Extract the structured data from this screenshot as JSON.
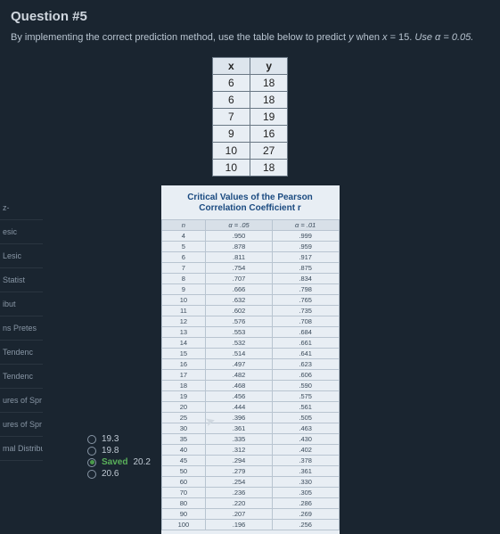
{
  "question": {
    "title": "Question #5",
    "text_before": "By implementing the correct prediction method, use the table below to predict ",
    "var_y": "y",
    "text_mid": " when ",
    "var_x": "x",
    "eq": " = 15.",
    "use": "   Use α = 0.05."
  },
  "xy": {
    "xh": "x",
    "yh": "y",
    "rows": [
      {
        "x": "6",
        "y": "18"
      },
      {
        "x": "6",
        "y": "18"
      },
      {
        "x": "7",
        "y": "19"
      },
      {
        "x": "9",
        "y": "16"
      },
      {
        "x": "10",
        "y": "27"
      },
      {
        "x": "10",
        "y": "18"
      }
    ]
  },
  "crit": {
    "title1": "Critical Values of the Pearson",
    "title2": "Correlation Coefficient r",
    "h_n": "n",
    "h_a05": "α = .05",
    "h_a01": "α = .01",
    "rows": [
      {
        "n": "4",
        "a": ".950",
        "b": ".999"
      },
      {
        "n": "5",
        "a": ".878",
        "b": ".959"
      },
      {
        "n": "6",
        "a": ".811",
        "b": ".917"
      },
      {
        "n": "7",
        "a": ".754",
        "b": ".875"
      },
      {
        "n": "8",
        "a": ".707",
        "b": ".834"
      },
      {
        "n": "9",
        "a": ".666",
        "b": ".798"
      },
      {
        "n": "10",
        "a": ".632",
        "b": ".765"
      },
      {
        "n": "11",
        "a": ".602",
        "b": ".735"
      },
      {
        "n": "12",
        "a": ".576",
        "b": ".708"
      },
      {
        "n": "13",
        "a": ".553",
        "b": ".684"
      },
      {
        "n": "14",
        "a": ".532",
        "b": ".661"
      },
      {
        "n": "15",
        "a": ".514",
        "b": ".641"
      },
      {
        "n": "16",
        "a": ".497",
        "b": ".623"
      },
      {
        "n": "17",
        "a": ".482",
        "b": ".606"
      },
      {
        "n": "18",
        "a": ".468",
        "b": ".590"
      },
      {
        "n": "19",
        "a": ".456",
        "b": ".575"
      },
      {
        "n": "20",
        "a": ".444",
        "b": ".561"
      },
      {
        "n": "25",
        "a": ".396",
        "b": ".505"
      },
      {
        "n": "30",
        "a": ".361",
        "b": ".463"
      },
      {
        "n": "35",
        "a": ".335",
        "b": ".430"
      },
      {
        "n": "40",
        "a": ".312",
        "b": ".402"
      },
      {
        "n": "45",
        "a": ".294",
        "b": ".378"
      },
      {
        "n": "50",
        "a": ".279",
        "b": ".361"
      },
      {
        "n": "60",
        "a": ".254",
        "b": ".330"
      },
      {
        "n": "70",
        "a": ".236",
        "b": ".305"
      },
      {
        "n": "80",
        "a": ".220",
        "b": ".286"
      },
      {
        "n": "90",
        "a": ".207",
        "b": ".269"
      },
      {
        "n": "100",
        "a": ".196",
        "b": ".256"
      }
    ]
  },
  "answers": {
    "a1": "19.3",
    "a2": "19.8",
    "saved": "Saved",
    "a3": "20.2",
    "a4": "20.6"
  },
  "sidebar": {
    "i1": "z-",
    "i2": "esic",
    "i3": "Lesic",
    "i4": "Statist",
    "i5": "ibut",
    "i6": "ns Pretes",
    "i7": "Tendenc",
    "i8": "Tendenc",
    "i9": "ures of Spr",
    "i10": "ures of Spr",
    "i11": "mal Distribut"
  }
}
